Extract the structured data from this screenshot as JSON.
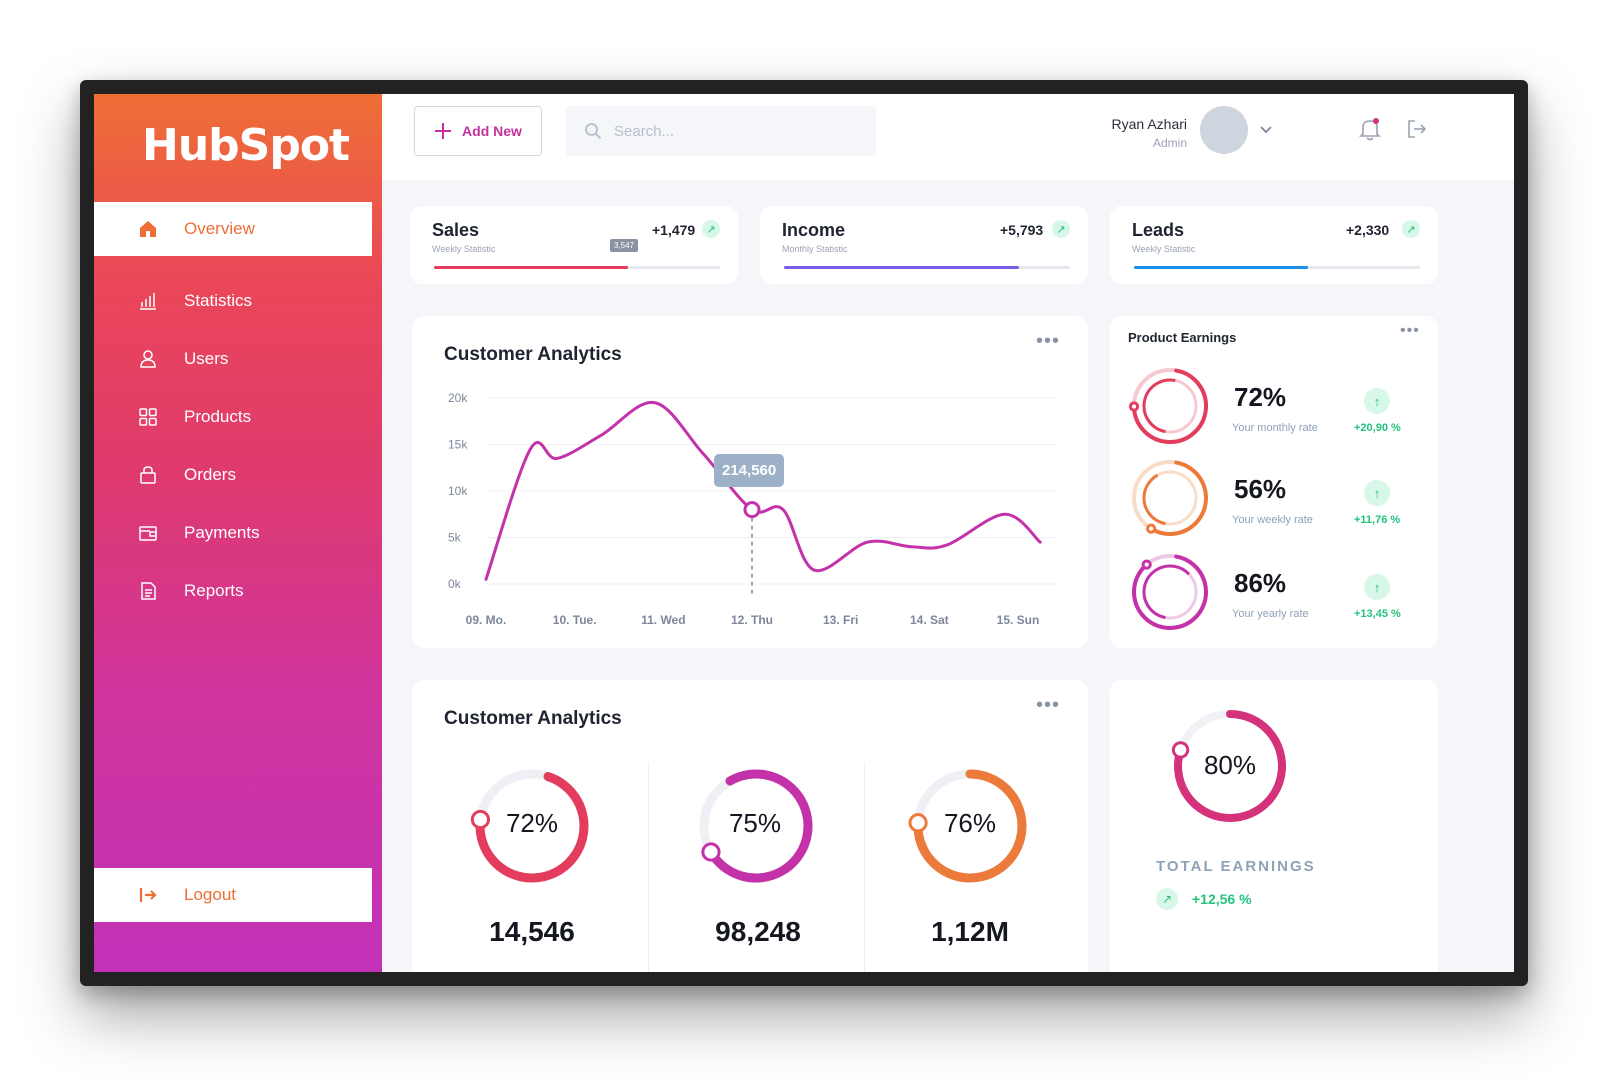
{
  "brand": {
    "logo_text": "HubSpot"
  },
  "sidebar": {
    "items": [
      {
        "label": "Overview",
        "icon": "home-icon"
      },
      {
        "label": "Statistics",
        "icon": "bar-chart-icon"
      },
      {
        "label": "Users",
        "icon": "user-icon"
      },
      {
        "label": "Products",
        "icon": "grid-icon"
      },
      {
        "label": "Orders",
        "icon": "bag-icon"
      },
      {
        "label": "Payments",
        "icon": "wallet-icon"
      },
      {
        "label": "Reports",
        "icon": "document-icon"
      }
    ],
    "logout_label": "Logout"
  },
  "topbar": {
    "add_new_label": "Add New",
    "search_placeholder": "Search...",
    "user_name": "Ryan Azhari",
    "user_role": "Admin"
  },
  "stats": [
    {
      "title": "Sales",
      "subtitle": "Weekly Statistic",
      "value": "+1,479",
      "progress": 0.68,
      "color": "#e33c5c",
      "badge": "3,547"
    },
    {
      "title": "Income",
      "subtitle": "Monthly Statistic",
      "value": "+5,793",
      "progress": 0.82,
      "color": "#7b5ce6"
    },
    {
      "title": "Leads",
      "subtitle": "Weekly Statistic",
      "value": "+2,330",
      "progress": 0.61,
      "color": "#1b8fe6"
    }
  ],
  "analytics": {
    "title": "Customer Analytics",
    "tooltip": "214,560",
    "chart_data": {
      "type": "line",
      "categories": [
        "09. Mo.",
        "10. Tue.",
        "11. Wed",
        "12. Thu",
        "13. Fri",
        "14. Sat",
        "15. Sun"
      ],
      "y_ticks": [
        "20k",
        "15k",
        "10k",
        "5k",
        "0k"
      ],
      "ylim": [
        0,
        20000
      ],
      "x": [
        0,
        0.5,
        0.8,
        1.3,
        1.9,
        2.45,
        3.0,
        3.35,
        3.7,
        4.3,
        4.8,
        5.2,
        5.85,
        6.25
      ],
      "values": [
        500,
        14500,
        13500,
        16000,
        19500,
        14000,
        8000,
        8000,
        1500,
        4500,
        4000,
        4200,
        7500,
        4500
      ],
      "highlight_category": "12. Thu",
      "color": "#c332a9",
      "grid": true
    }
  },
  "product_earnings": {
    "title": "Product Earnings",
    "items": [
      {
        "pct": "72%",
        "label": "Your monthly rate",
        "change": "+20,90 %",
        "value": 72,
        "color": "#e33c5c",
        "track": "#f6c9d1"
      },
      {
        "pct": "56%",
        "label": "Your weekly rate",
        "change": "+11,76 %",
        "value": 56,
        "color": "#ec7a3a",
        "track": "#f9dcc8"
      },
      {
        "pct": "86%",
        "label": "Your yearly rate",
        "change": "+13,45 %",
        "value": 86,
        "color": "#c332a9",
        "track": "#efc8e6"
      }
    ]
  },
  "customer_analytics_2": {
    "title": "Customer Analytics",
    "donuts": [
      {
        "pct": "72%",
        "value": 72,
        "number": "14,546",
        "color": "#e33c5c"
      },
      {
        "pct": "75%",
        "value": 75,
        "number": "98,248",
        "color": "#c332a9"
      },
      {
        "pct": "76%",
        "value": 76,
        "number": "1,12M",
        "color": "#ec7a3a"
      }
    ]
  },
  "total_earnings": {
    "pct": "80%",
    "value": 80,
    "label": "TOTAL EARNINGS",
    "change": "+12,56 %",
    "color": "#d4327a"
  }
}
